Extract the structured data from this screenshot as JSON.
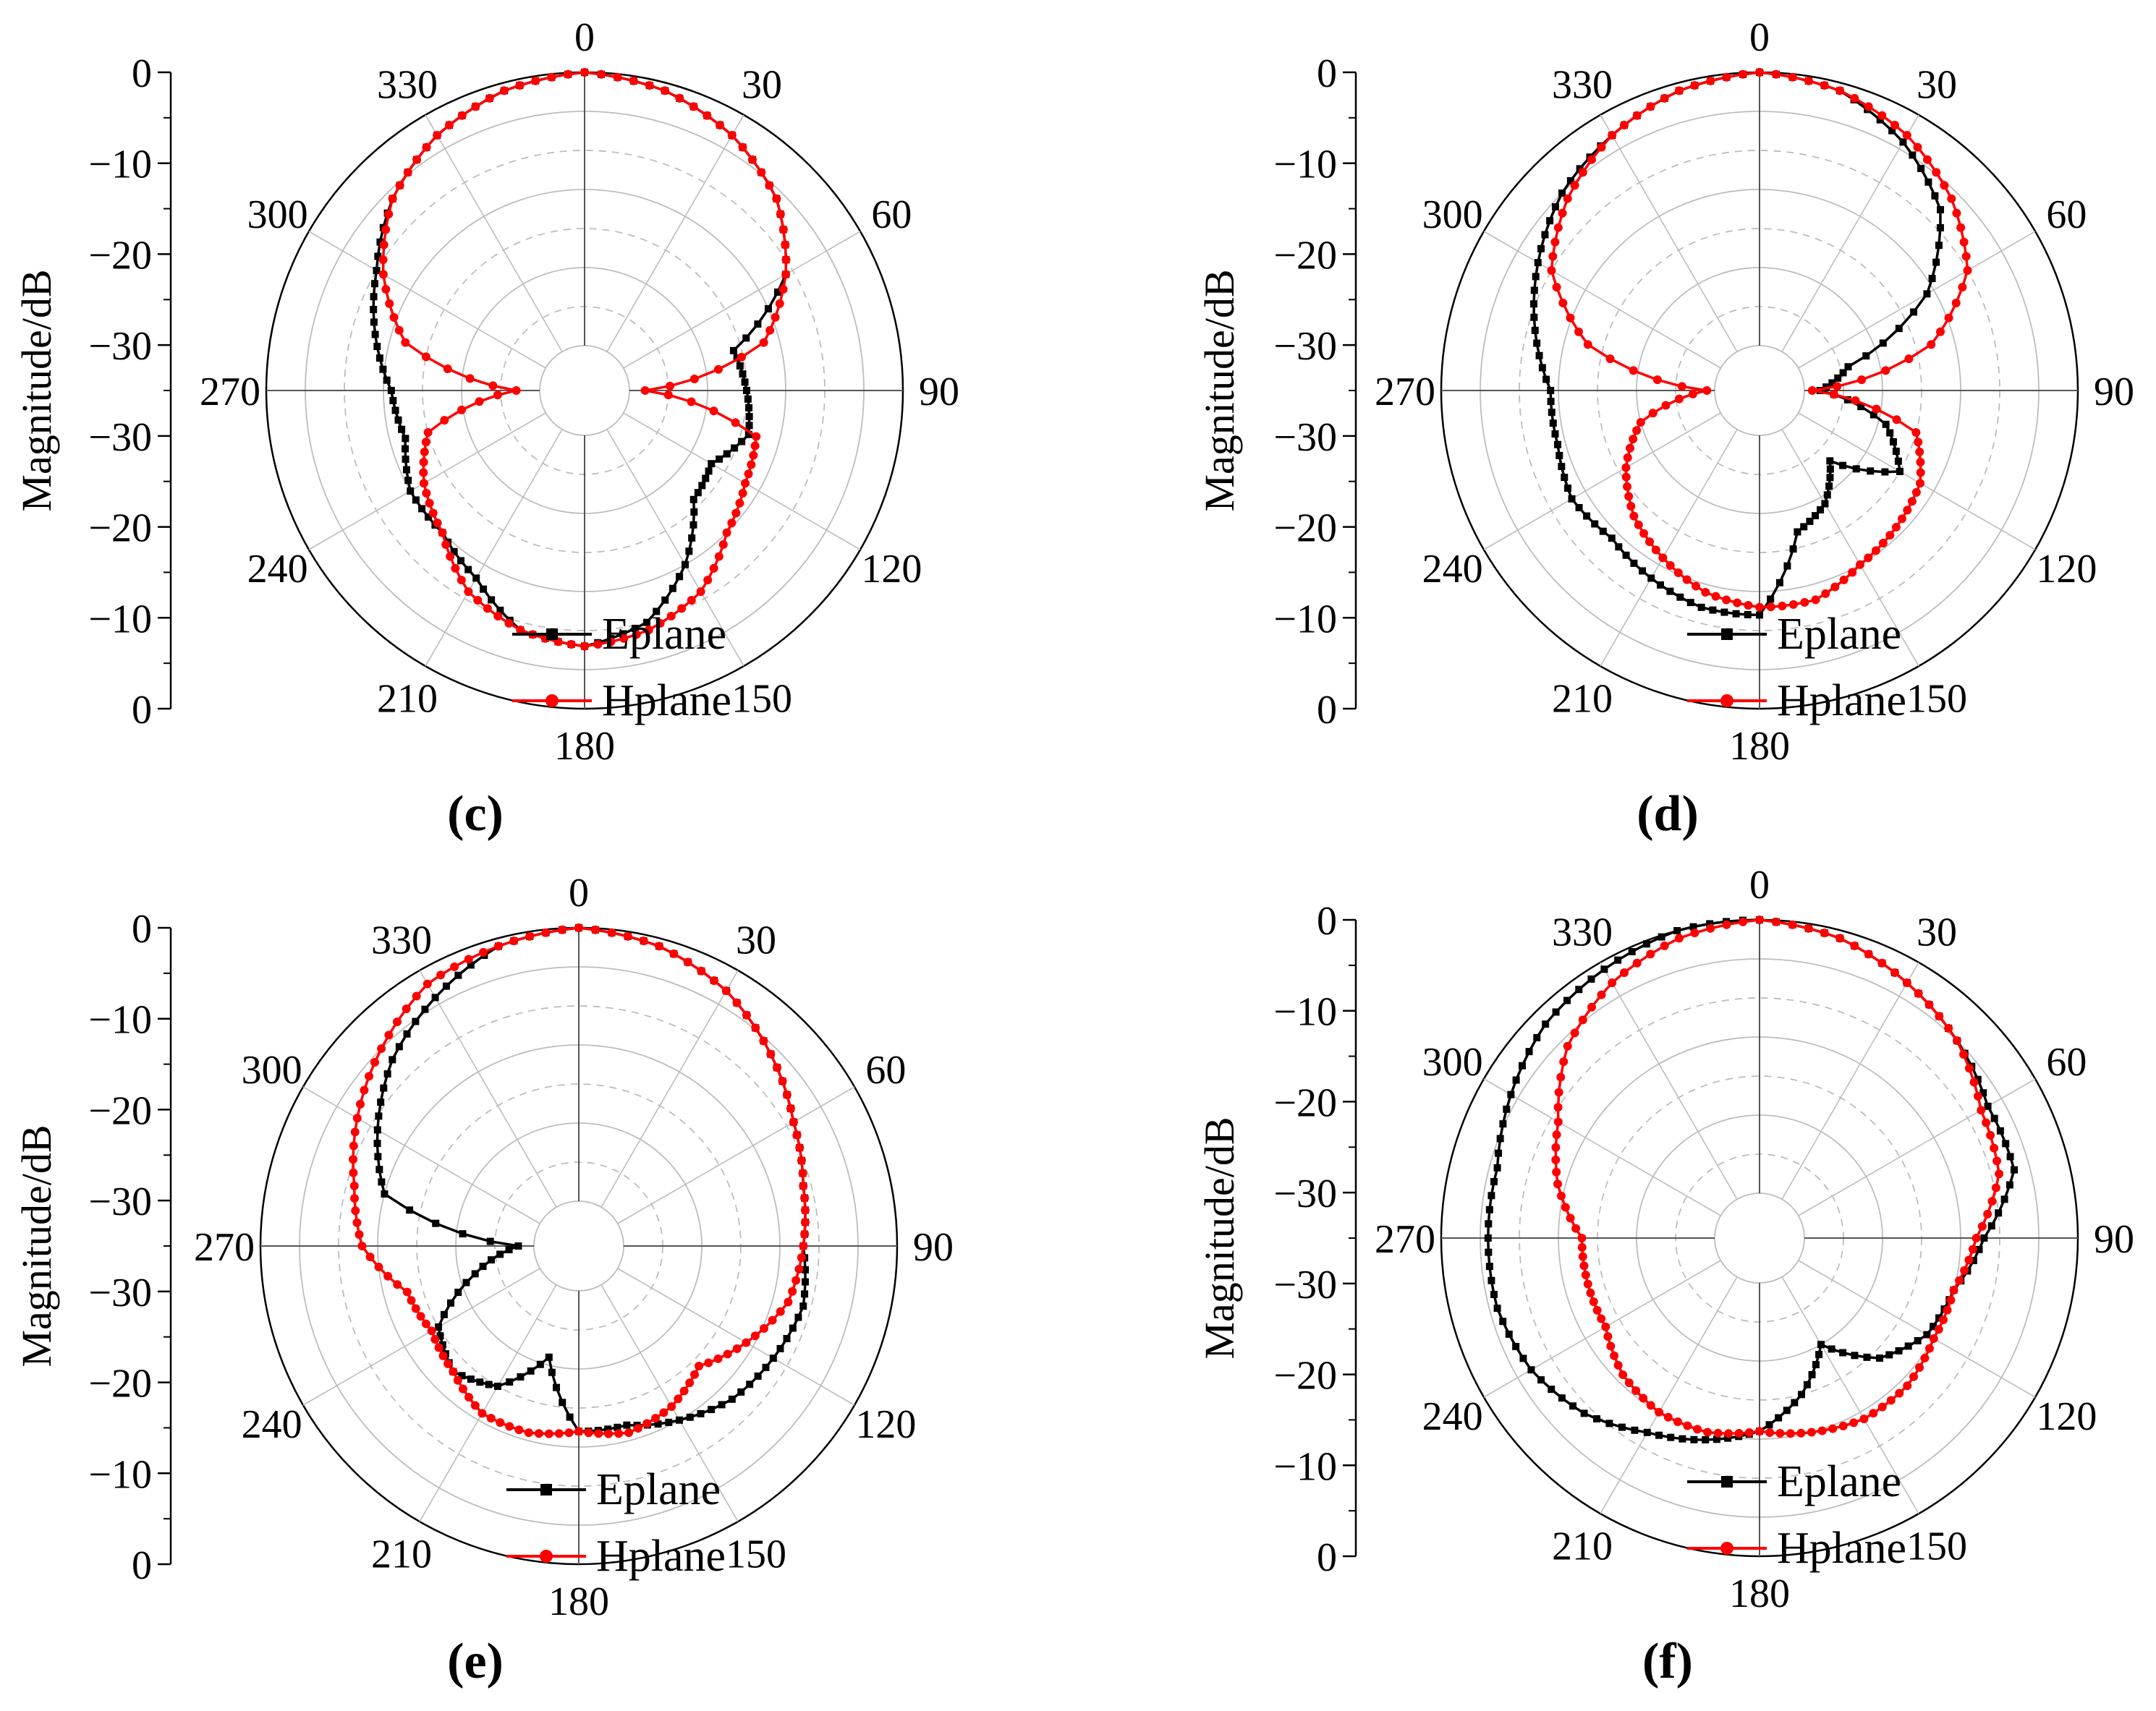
{
  "figure": {
    "colors": {
      "Eplane": "#000000",
      "Hplane": "#ff0000",
      "grid": "#bdbdbd",
      "axis": "#000000"
    }
  },
  "chart_data": [
    {
      "type": "polar-line",
      "panel_label": "(c)",
      "ylabel": "Magnitude/dB",
      "angle_ticks": [
        "0",
        "30",
        "60",
        "90",
        "120",
        "150",
        "180",
        "210",
        "240",
        "270",
        "300",
        "330"
      ],
      "radial_axis_ticks": [
        "0",
        "−10",
        "−20",
        "−30",
        "−30",
        "−20",
        "−10",
        "0"
      ],
      "r_range_dB": [
        -35,
        0
      ],
      "grid": true,
      "legend_position": "bottom-center",
      "series": [
        {
          "name": "Eplane",
          "marker": "square",
          "angles_deg": [
            0,
            15,
            30,
            45,
            60,
            75,
            90,
            105,
            120,
            135,
            150,
            165,
            180,
            195,
            210,
            225,
            240,
            255,
            270,
            285,
            300,
            315,
            330,
            345,
            360
          ],
          "values_dB": [
            0,
            -1,
            -3,
            -6,
            -11,
            -21,
            -20,
            -19,
            -22,
            -21,
            -15,
            -10,
            -8,
            -9,
            -13,
            -15,
            -15,
            -17,
            -16,
            -13,
            -10,
            -6,
            -3,
            -1,
            0
          ]
        },
        {
          "name": "Hplane",
          "marker": "circle",
          "angles_deg": [
            0,
            15,
            30,
            45,
            60,
            75,
            90,
            105,
            120,
            135,
            150,
            165,
            180,
            195,
            210,
            225,
            240,
            255,
            270,
            285,
            300,
            315,
            330,
            345,
            360
          ],
          "values_dB": [
            0,
            -1,
            -3,
            -6,
            -11,
            -17,
            -33,
            -18,
            -17,
            -15,
            -11,
            -9,
            -8,
            -9,
            -11,
            -15,
            -17,
            -20,
            -32,
            -17,
            -11,
            -6,
            -3,
            -1,
            0
          ]
        }
      ]
    },
    {
      "type": "polar-line",
      "panel_label": "(d)",
      "ylabel": "Magnitude/dB",
      "angle_ticks": [
        "0",
        "30",
        "60",
        "90",
        "120",
        "150",
        "180",
        "210",
        "240",
        "270",
        "300",
        "330"
      ],
      "radial_axis_ticks": [
        "0",
        "−10",
        "−20",
        "−30",
        "−30",
        "−20",
        "−10",
        "0"
      ],
      "r_range_dB": [
        -35,
        0
      ],
      "grid": true,
      "legend_position": "bottom-center",
      "series": [
        {
          "name": "Eplane",
          "marker": "square",
          "angles_deg": [
            0,
            15,
            30,
            45,
            60,
            75,
            90,
            105,
            120,
            135,
            150,
            165,
            180,
            195,
            210,
            225,
            240,
            255,
            270,
            285,
            300,
            315,
            330,
            345,
            360
          ],
          "values_dB": [
            0,
            -1,
            -4,
            -8,
            -16,
            -29,
            -33,
            -24,
            -20,
            -28,
            -24,
            -22,
            -12,
            -12,
            -13,
            -14,
            -13,
            -14,
            -14,
            -11,
            -8,
            -5,
            -3,
            -1,
            0
          ]
        },
        {
          "name": "Hplane",
          "marker": "circle",
          "angles_deg": [
            0,
            15,
            30,
            45,
            60,
            75,
            90,
            105,
            120,
            135,
            150,
            165,
            180,
            195,
            210,
            225,
            240,
            255,
            270,
            285,
            300,
            315,
            330,
            345,
            360
          ],
          "values_dB": [
            0,
            -1,
            -3,
            -6,
            -10,
            -18,
            -34,
            -20,
            -17,
            -16,
            -15,
            -13,
            -13,
            -14,
            -16,
            -18,
            -21,
            -25,
            -34,
            -18,
            -10,
            -6,
            -3,
            -1,
            0
          ]
        }
      ]
    },
    {
      "type": "polar-line",
      "panel_label": "(e)",
      "ylabel": "Magnitude/dB",
      "angle_ticks": [
        "0",
        "30",
        "60",
        "90",
        "120",
        "150",
        "180",
        "210",
        "240",
        "270",
        "300",
        "330"
      ],
      "radial_axis_ticks": [
        "0",
        "−10",
        "−20",
        "−30",
        "−30",
        "−20",
        "−10",
        "0"
      ],
      "r_range_dB": [
        -35,
        0
      ],
      "grid": true,
      "legend_position": "bottom-center",
      "series": [
        {
          "name": "Eplane",
          "marker": "square",
          "angles_deg": [
            0,
            15,
            30,
            45,
            60,
            75,
            90,
            105,
            120,
            135,
            150,
            165,
            180,
            195,
            210,
            225,
            240,
            255,
            270,
            285,
            300,
            315,
            330,
            345,
            360
          ],
          "values_dB": [
            0,
            -1,
            -3,
            -6,
            -9,
            -11,
            -12,
            -11,
            -12,
            -13,
            -15,
            -17,
            -17,
            -26,
            -20,
            -18,
            -20,
            -27,
            -33,
            -15,
            -11,
            -7,
            -4,
            -1,
            0
          ]
        },
        {
          "name": "Hplane",
          "marker": "circle",
          "angles_deg": [
            0,
            15,
            30,
            45,
            60,
            75,
            90,
            105,
            120,
            135,
            150,
            165,
            180,
            195,
            210,
            225,
            240,
            255,
            270,
            285,
            300,
            315,
            330,
            345,
            360
          ],
          "values_dB": [
            0,
            -1,
            -3,
            -6,
            -9,
            -11,
            -12,
            -13,
            -16,
            -19,
            -17,
            -16,
            -17,
            -16,
            -16,
            -18,
            -19,
            -18,
            -13,
            -11,
            -8,
            -5,
            -2,
            -1,
            0
          ]
        }
      ]
    },
    {
      "type": "polar-line",
      "panel_label": "(f)",
      "ylabel": "Magnitude/dB",
      "angle_ticks": [
        "0",
        "30",
        "60",
        "90",
        "120",
        "150",
        "180",
        "210",
        "240",
        "270",
        "300",
        "330"
      ],
      "radial_axis_ticks": [
        "0",
        "−10",
        "−20",
        "−30",
        "−30",
        "−20",
        "−10",
        "0"
      ],
      "r_range_dB": [
        -35,
        0
      ],
      "grid": true,
      "legend_position": "bottom-center",
      "series": [
        {
          "name": "Eplane",
          "marker": "square",
          "angles_deg": [
            0,
            15,
            30,
            45,
            60,
            75,
            90,
            105,
            120,
            135,
            150,
            165,
            180,
            195,
            210,
            225,
            240,
            255,
            270,
            285,
            300,
            315,
            330,
            345,
            360
          ],
          "values_dB": [
            0,
            -1,
            -3,
            -5,
            -7,
            -7,
            -12,
            -15,
            -16,
            -19,
            -25,
            -20,
            -16,
            -14,
            -12,
            -9,
            -7,
            -6,
            -6,
            -6,
            -4,
            -2,
            -1,
            0,
            0
          ]
        },
        {
          "name": "Hplane",
          "marker": "circle",
          "angles_deg": [
            0,
            15,
            30,
            45,
            60,
            75,
            90,
            105,
            120,
            135,
            150,
            165,
            180,
            195,
            210,
            225,
            240,
            255,
            270,
            285,
            300,
            315,
            330,
            345,
            360
          ],
          "values_dB": [
            0,
            -1,
            -3,
            -5,
            -8,
            -9,
            -13,
            -15,
            -15,
            -14,
            -14,
            -15,
            -16,
            -15,
            -15,
            -16,
            -18,
            -18,
            -18,
            -14,
            -11,
            -6,
            -3,
            -1,
            0
          ]
        }
      ]
    }
  ]
}
